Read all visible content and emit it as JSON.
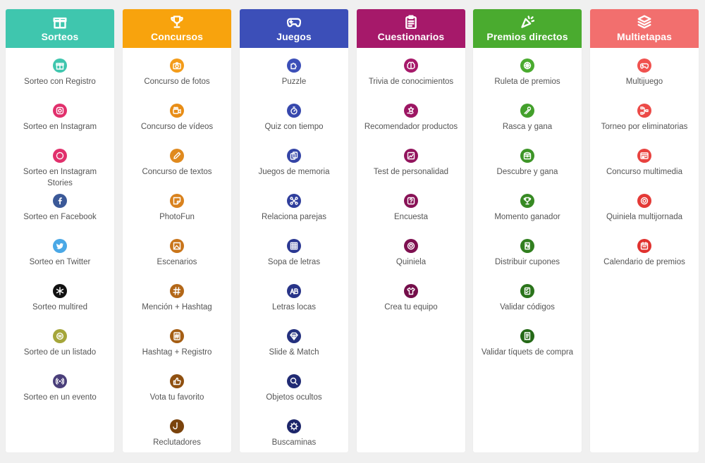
{
  "columns": [
    {
      "id": "sorteos",
      "title": "Sorteos",
      "color": "#3fc6ae",
      "icon": "gift-icon",
      "items": [
        {
          "label": "Sorteo con Registro",
          "icon": "gift-icon",
          "color": "#3fc6ae"
        },
        {
          "label": "Sorteo en Instagram",
          "icon": "instagram-icon",
          "color": "#e1306c"
        },
        {
          "label": "Sorteo en Instagram Stories",
          "icon": "instagram-stories-icon",
          "color": "#e1306c"
        },
        {
          "label": "Sorteo en Facebook",
          "icon": "facebook-icon",
          "color": "#3b5998"
        },
        {
          "label": "Sorteo en Twitter",
          "icon": "twitter-icon",
          "color": "#4aa8e6"
        },
        {
          "label": "Sorteo multired",
          "icon": "network-icon",
          "color": "#111111"
        },
        {
          "label": "Sorteo de un listado",
          "icon": "list-icon",
          "color": "#a5a63a"
        },
        {
          "label": "Sorteo en un evento",
          "icon": "broadcast-icon",
          "color": "#4a3f7a"
        }
      ]
    },
    {
      "id": "concursos",
      "title": "Concursos",
      "color": "#f8a30d",
      "icon": "trophy-icon",
      "items": [
        {
          "label": "Concurso de fotos",
          "icon": "camera-icon",
          "color": "#f39c1a"
        },
        {
          "label": "Concurso de vídeos",
          "icon": "video-camera-icon",
          "color": "#e88d16"
        },
        {
          "label": "Concurso de textos",
          "icon": "pen-icon",
          "color": "#e08a1e"
        },
        {
          "label": "PhotoFun",
          "icon": "sticker-icon",
          "color": "#d9821e"
        },
        {
          "label": "Escenarios",
          "icon": "frame-icon",
          "color": "#c9751a"
        },
        {
          "label": "Mención + Hashtag",
          "icon": "hashtag-icon",
          "color": "#b36718"
        },
        {
          "label": "Hashtag + Registro",
          "icon": "hashtag-form-icon",
          "color": "#a55e14"
        },
        {
          "label": "Vota tu favorito",
          "icon": "thumbs-up-icon",
          "color": "#8f5010"
        },
        {
          "label": "Reclutadores",
          "icon": "hook-icon",
          "color": "#7a430c"
        }
      ]
    },
    {
      "id": "juegos",
      "title": "Juegos",
      "color": "#3c4fb8",
      "icon": "gamepad-icon",
      "items": [
        {
          "label": "Puzzle",
          "icon": "puzzle-icon",
          "color": "#3c4fb8"
        },
        {
          "label": "Quiz con tiempo",
          "icon": "stopwatch-icon",
          "color": "#3748ad"
        },
        {
          "label": "Juegos de memoria",
          "icon": "cards-icon",
          "color": "#3444a6"
        },
        {
          "label": "Relaciona parejas",
          "icon": "pairs-icon",
          "color": "#2f3e9c"
        },
        {
          "label": "Sopa de letras",
          "icon": "grid-icon",
          "color": "#2b3892"
        },
        {
          "label": "Letras locas",
          "icon": "letters-icon",
          "color": "#283488"
        },
        {
          "label": "Slide & Match",
          "icon": "diamond-icon",
          "color": "#24307e"
        },
        {
          "label": "Objetos ocultos",
          "icon": "magnifier-icon",
          "color": "#212b74"
        },
        {
          "label": "Buscaminas",
          "icon": "mine-icon",
          "color": "#1d266a"
        }
      ]
    },
    {
      "id": "cuestionarios",
      "title": "Cuestionarios",
      "color": "#a6196a",
      "icon": "clipboard-icon",
      "items": [
        {
          "label": "Trivia de conocimientos",
          "icon": "brain-icon",
          "color": "#a6196a"
        },
        {
          "label": "Recomendador productos",
          "icon": "star-hand-icon",
          "color": "#9c1663"
        },
        {
          "label": "Test de personalidad",
          "icon": "chart-icon",
          "color": "#92145d"
        },
        {
          "label": "Encuesta",
          "icon": "question-icon",
          "color": "#881256"
        },
        {
          "label": "Quiniela",
          "icon": "ball-icon",
          "color": "#7e1050"
        },
        {
          "label": "Crea tu equipo",
          "icon": "shirt-icon",
          "color": "#740e4a"
        }
      ]
    },
    {
      "id": "premios-directos",
      "title": "Premios directos",
      "color": "#4aab2f",
      "icon": "confetti-icon",
      "items": [
        {
          "label": "Ruleta de premios",
          "icon": "wheel-icon",
          "color": "#4aab2f"
        },
        {
          "label": "Rasca y gana",
          "icon": "scratch-icon",
          "color": "#43a02b"
        },
        {
          "label": "Descubre y gana",
          "icon": "chest-icon",
          "color": "#3d9527"
        },
        {
          "label": "Momento ganador",
          "icon": "trophy-icon",
          "color": "#378a23"
        },
        {
          "label": "Distribuir cupones",
          "icon": "coupon-icon",
          "color": "#317f1f"
        },
        {
          "label": "Validar códigos",
          "icon": "code-icon",
          "color": "#2b741b"
        },
        {
          "label": "Validar tíquets de compra",
          "icon": "receipt-icon",
          "color": "#256917"
        }
      ]
    },
    {
      "id": "multietapas",
      "title": "Multietapas",
      "color": "#f26f6e",
      "icon": "layers-icon",
      "items": [
        {
          "label": "Multijuego",
          "icon": "gamepad-icon",
          "color": "#f0524f"
        },
        {
          "label": "Torneo por eliminatorias",
          "icon": "bracket-icon",
          "color": "#ec4a47"
        },
        {
          "label": "Concurso multimedia",
          "icon": "media-icon",
          "color": "#e8423f"
        },
        {
          "label": "Quiniela multijornada",
          "icon": "target-icon",
          "color": "#e43a37"
        },
        {
          "label": "Calendario de premios",
          "icon": "calendar-icon",
          "color": "#e0322f"
        }
      ]
    }
  ]
}
